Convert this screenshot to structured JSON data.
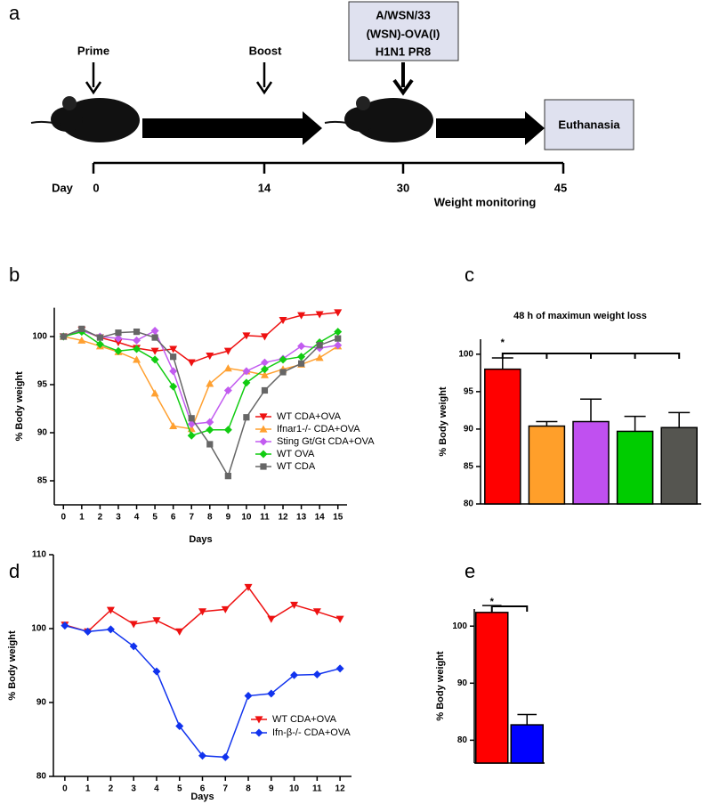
{
  "diagram": {
    "panel_label": "a",
    "prime": "Prime",
    "boost": "Boost",
    "challenge": [
      "A/WSN/33",
      "(WSN)-OVA(I)",
      "H1N1 PR8"
    ],
    "end": "Euthanasia",
    "axis_label": "Day",
    "days": [
      "0",
      "14",
      "30",
      "45"
    ],
    "note": "Weight monitoring"
  },
  "chart_data": [
    {
      "type": "line",
      "panel_label": "b",
      "xlabel": "Days",
      "ylabel": "% Body weight",
      "x": [
        0,
        1,
        2,
        3,
        4,
        5,
        6,
        7,
        8,
        9,
        10,
        11,
        12,
        13,
        14,
        15
      ],
      "xlim": [
        -0.5,
        15.5
      ],
      "xticks": [
        0,
        1,
        2,
        3,
        4,
        5,
        6,
        7,
        8,
        9,
        10,
        11,
        12,
        13,
        14,
        15
      ],
      "ylim": [
        82.5,
        103
      ],
      "yticks": [
        85,
        90,
        95,
        100
      ],
      "series": [
        {
          "name": "WT CDA+OVA",
          "color": "#ee1111",
          "marker": "triangle-down",
          "values": [
            100,
            100.7,
            99.9,
            99.4,
            98.8,
            98.5,
            98.7,
            97.3,
            98.0,
            98.5,
            100.1,
            100.0,
            101.7,
            102.2,
            102.3,
            102.5
          ]
        },
        {
          "name": "Ifnar1-/- CDA+OVA",
          "color": "#ffa030",
          "marker": "triangle-up",
          "values": [
            100,
            99.6,
            99.0,
            98.4,
            97.6,
            94.1,
            90.7,
            90.4,
            95.1,
            96.7,
            96.4,
            96.0,
            96.6,
            97.1,
            97.8,
            99.0
          ]
        },
        {
          "name": "Sting Gt/Gt CDA+OVA",
          "color": "#c25cf0",
          "marker": "diamond",
          "values": [
            100,
            100.6,
            100.0,
            99.8,
            99.6,
            100.6,
            96.4,
            90.9,
            91.1,
            94.4,
            96.4,
            97.3,
            97.7,
            99.0,
            98.8,
            99.1
          ]
        },
        {
          "name": "WT OVA",
          "color": "#11cc11",
          "marker": "diamond",
          "values": [
            100,
            100.5,
            99.2,
            98.5,
            98.7,
            97.6,
            94.8,
            89.7,
            90.3,
            90.3,
            95.2,
            96.6,
            97.6,
            97.9,
            99.4,
            100.5
          ]
        },
        {
          "name": "WT CDA",
          "color": "#666666",
          "marker": "square",
          "values": [
            100,
            100.8,
            99.9,
            100.4,
            100.5,
            99.9,
            97.9,
            91.5,
            88.8,
            85.5,
            91.6,
            94.4,
            96.3,
            97.2,
            99.1,
            99.8
          ]
        }
      ]
    },
    {
      "type": "bar",
      "panel_label": "c",
      "title": "48 h of maximun weight loss",
      "ylabel": "% Body weight",
      "categories": [
        null,
        null,
        null,
        null,
        null
      ],
      "values": [
        98.0,
        90.4,
        91.0,
        89.7,
        90.2
      ],
      "errors": [
        1.5,
        0.6,
        3.0,
        2.0,
        2.0
      ],
      "colors": [
        "#ff0000",
        "#ff9f2a",
        "#c050f0",
        "#00cc00",
        "#555550"
      ],
      "ylim": [
        80,
        102
      ],
      "yticks": [
        80,
        85,
        90,
        95,
        100
      ],
      "annotation": "*"
    },
    {
      "type": "line",
      "panel_label": "d",
      "xlabel": "Days",
      "ylabel": "% Body weight",
      "x": [
        0,
        1,
        2,
        3,
        4,
        5,
        6,
        7,
        8,
        9,
        10,
        11,
        12
      ],
      "xlim": [
        -0.5,
        12.5
      ],
      "xticks": [
        0,
        1,
        2,
        3,
        4,
        5,
        6,
        7,
        8,
        9,
        10,
        11,
        12
      ],
      "ylim": [
        80,
        110
      ],
      "yticks": [
        80,
        90,
        100,
        110
      ],
      "series": [
        {
          "name": "WT CDA+OVA",
          "color": "#ee1111",
          "marker": "triangle-down",
          "values": [
            100.5,
            99.6,
            102.5,
            100.6,
            101.1,
            99.6,
            102.3,
            102.6,
            105.6,
            101.3,
            103.2,
            102.3,
            101.3
          ]
        },
        {
          "name": "Ifn-β-/- CDA+OVA",
          "color": "#1133ee",
          "marker": "diamond",
          "values": [
            100.4,
            99.6,
            99.9,
            97.6,
            94.2,
            86.8,
            82.8,
            82.6,
            90.9,
            91.2,
            93.7,
            93.8,
            94.6
          ]
        }
      ]
    },
    {
      "type": "bar",
      "panel_label": "e",
      "ylabel": "% Body weight",
      "categories": [
        null,
        null
      ],
      "values": [
        102.4,
        82.7
      ],
      "errors": [
        1.2,
        1.8
      ],
      "colors": [
        "#ff0000",
        "#0000ff"
      ],
      "ylim": [
        76,
        103
      ],
      "yticks": [
        80,
        90,
        100
      ],
      "annotation": "*"
    }
  ]
}
